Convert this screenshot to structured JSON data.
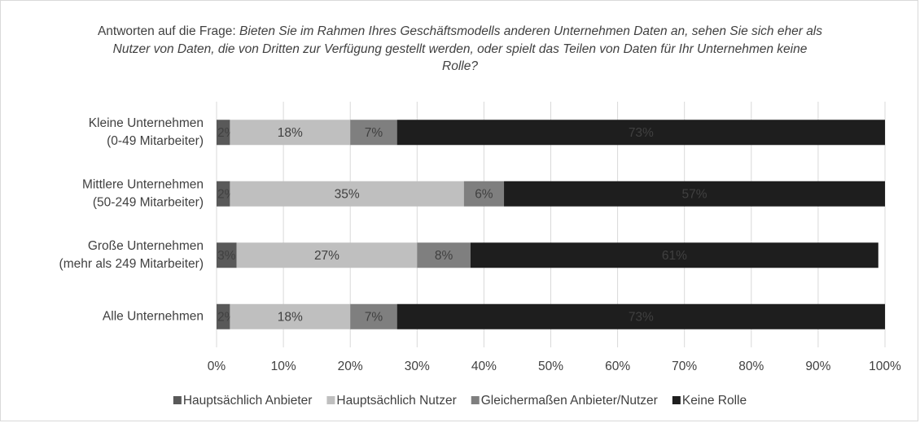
{
  "chart_data": {
    "type": "stacked-bar-horizontal",
    "title": "Antworten auf die Frage:",
    "question": "Bieten Sie im Rahmen Ihres Geschäftsmodells anderen Unternehmen Daten an, sehen Sie sich eher als Nutzer von Daten, die von Dritten zur Verfügung gestellt werden, oder spielt das Teilen von Daten für Ihr Unternehmen keine Rolle?",
    "categories": [
      [
        "Kleine Unternehmen",
        "(0-49 Mitarbeiter)"
      ],
      [
        "Mittlere Unternehmen",
        "(50-249 Mitarbeiter)"
      ],
      [
        "Große Unternehmen",
        "(mehr als 249 Mitarbeiter)"
      ],
      [
        "Alle Unternehmen"
      ]
    ],
    "series": [
      {
        "name": "Hauptsächlich Anbieter",
        "color": "#595959",
        "label_color": "#ffffff",
        "values": [
          2,
          2,
          3,
          2
        ],
        "value_labels": [
          "2%",
          "2%",
          "3%",
          "2%"
        ]
      },
      {
        "name": "Hauptsächlich Nutzer",
        "color": "#bfbfbf",
        "label_color": "#404040",
        "values": [
          18,
          35,
          27,
          18
        ],
        "value_labels": [
          "18%",
          "35%",
          "27%",
          "18%"
        ]
      },
      {
        "name": "Gleichermaßen Anbieter/Nutzer",
        "color": "#7f7f7f",
        "label_color": "#262626",
        "values": [
          7,
          6,
          8,
          7
        ],
        "value_labels": [
          "7%",
          "6%",
          "8%",
          "7%"
        ]
      },
      {
        "name": "Keine Rolle",
        "color": "#1e1e1e",
        "label_color": "#ffffff",
        "values": [
          73,
          57,
          61,
          73
        ],
        "value_labels": [
          "73%",
          "57%",
          "61%",
          "73%"
        ]
      }
    ],
    "xlim": [
      0,
      100
    ],
    "xticks": [
      {
        "value": 0,
        "label": "0%"
      },
      {
        "value": 10,
        "label": "10%"
      },
      {
        "value": 20,
        "label": "20%"
      },
      {
        "value": 30,
        "label": "30%"
      },
      {
        "value": 40,
        "label": "40%"
      },
      {
        "value": 50,
        "label": "50%"
      },
      {
        "value": 60,
        "label": "60%"
      },
      {
        "value": 70,
        "label": "70%"
      },
      {
        "value": 80,
        "label": "80%"
      },
      {
        "value": 90,
        "label": "90%"
      },
      {
        "value": 100,
        "label": "100%"
      }
    ],
    "grid": true,
    "legend": "bottom"
  }
}
